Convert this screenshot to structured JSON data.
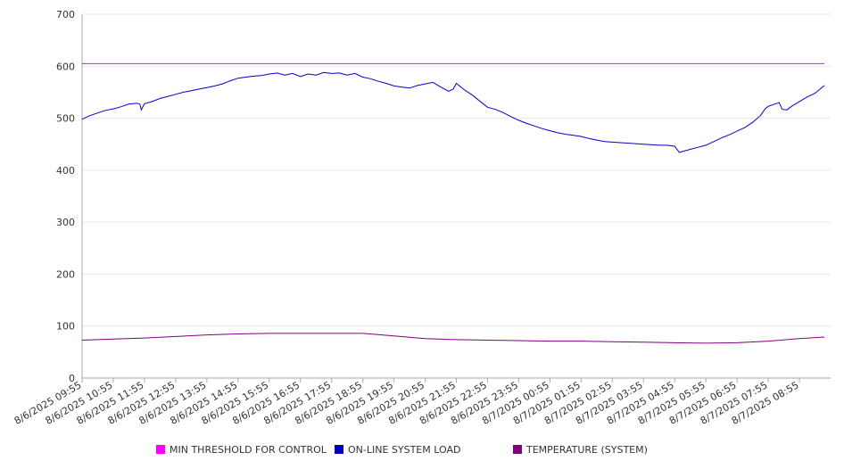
{
  "chart_data": {
    "type": "line",
    "ylim": [
      0,
      700
    ],
    "y_ticks": [
      "0",
      "100",
      "200",
      "300",
      "400",
      "500",
      "600",
      "700"
    ],
    "grid": "horizontal",
    "legend_position": "bottom",
    "x_labels": [
      "8/6/2025 09:55",
      "8/6/2025 10:55",
      "8/6/2025 11:55",
      "8/6/2025 12:55",
      "8/6/2025 13:55",
      "8/6/2025 14:55",
      "8/6/2025 15:55",
      "8/6/2025 16:55",
      "8/6/2025 17:55",
      "8/6/2025 18:55",
      "8/6/2025 19:55",
      "8/6/2025 20:55",
      "8/6/2025 21:55",
      "8/6/2025 22:55",
      "8/6/2025 23:55",
      "8/7/2025 00:55",
      "8/7/2025 01:55",
      "8/7/2025 02:55",
      "8/7/2025 03:55",
      "8/7/2025 04:55",
      "8/7/2025 05:55",
      "8/7/2025 06:55",
      "8/7/2025 07:55",
      "8/7/2025 08:55"
    ],
    "series": [
      {
        "name": "MIN THRESHOLD FOR CONTROL",
        "color": "#ff00ff",
        "points": [
          [
            0,
            605
          ],
          [
            23.8,
            605
          ]
        ]
      },
      {
        "name": "ON-LINE SYSTEM LOAD",
        "color": "#0000cc",
        "points": [
          [
            0,
            498
          ],
          [
            0.25,
            505
          ],
          [
            0.5,
            510
          ],
          [
            0.75,
            515
          ],
          [
            1.0,
            518
          ],
          [
            1.25,
            522
          ],
          [
            1.5,
            527
          ],
          [
            1.75,
            529
          ],
          [
            1.85,
            527
          ],
          [
            1.9,
            516
          ],
          [
            2.0,
            528
          ],
          [
            2.25,
            532
          ],
          [
            2.5,
            538
          ],
          [
            2.75,
            542
          ],
          [
            3.0,
            546
          ],
          [
            3.25,
            550
          ],
          [
            3.5,
            553
          ],
          [
            3.75,
            556
          ],
          [
            4.0,
            559
          ],
          [
            4.25,
            562
          ],
          [
            4.5,
            566
          ],
          [
            4.75,
            572
          ],
          [
            5.0,
            577
          ],
          [
            5.25,
            579
          ],
          [
            5.5,
            581
          ],
          [
            5.75,
            582
          ],
          [
            6.0,
            585
          ],
          [
            6.25,
            587
          ],
          [
            6.5,
            583
          ],
          [
            6.75,
            586
          ],
          [
            7.0,
            580
          ],
          [
            7.25,
            585
          ],
          [
            7.5,
            583
          ],
          [
            7.75,
            588
          ],
          [
            8.0,
            586
          ],
          [
            8.25,
            587
          ],
          [
            8.5,
            583
          ],
          [
            8.75,
            586
          ],
          [
            9.0,
            579
          ],
          [
            9.25,
            576
          ],
          [
            9.5,
            571
          ],
          [
            9.75,
            567
          ],
          [
            10.0,
            562
          ],
          [
            10.25,
            560
          ],
          [
            10.5,
            558
          ],
          [
            10.75,
            563
          ],
          [
            11.0,
            566
          ],
          [
            11.25,
            569
          ],
          [
            11.5,
            560
          ],
          [
            11.75,
            552
          ],
          [
            11.9,
            556
          ],
          [
            12.0,
            567
          ],
          [
            12.25,
            555
          ],
          [
            12.5,
            545
          ],
          [
            12.75,
            533
          ],
          [
            13.0,
            521
          ],
          [
            13.25,
            517
          ],
          [
            13.5,
            511
          ],
          [
            13.75,
            503
          ],
          [
            14.0,
            496
          ],
          [
            14.25,
            490
          ],
          [
            14.5,
            485
          ],
          [
            14.75,
            480
          ],
          [
            15.0,
            476
          ],
          [
            15.25,
            472
          ],
          [
            15.5,
            469
          ],
          [
            15.75,
            467
          ],
          [
            16.0,
            465
          ],
          [
            16.25,
            461
          ],
          [
            16.5,
            458
          ],
          [
            16.75,
            455
          ],
          [
            17.0,
            454
          ],
          [
            17.25,
            453
          ],
          [
            17.5,
            452
          ],
          [
            17.75,
            451
          ],
          [
            18.0,
            450
          ],
          [
            18.25,
            449
          ],
          [
            18.5,
            448
          ],
          [
            18.75,
            448
          ],
          [
            19.0,
            446
          ],
          [
            19.15,
            434
          ],
          [
            19.25,
            436
          ],
          [
            19.5,
            440
          ],
          [
            19.75,
            444
          ],
          [
            20.0,
            448
          ],
          [
            20.25,
            455
          ],
          [
            20.5,
            462
          ],
          [
            20.75,
            468
          ],
          [
            21.0,
            475
          ],
          [
            21.25,
            482
          ],
          [
            21.5,
            492
          ],
          [
            21.75,
            505
          ],
          [
            21.9,
            518
          ],
          [
            22.0,
            523
          ],
          [
            22.25,
            528
          ],
          [
            22.35,
            530
          ],
          [
            22.45,
            517
          ],
          [
            22.6,
            516
          ],
          [
            22.75,
            523
          ],
          [
            23.0,
            532
          ],
          [
            23.25,
            541
          ],
          [
            23.5,
            548
          ],
          [
            23.8,
            563
          ]
        ]
      },
      {
        "name": "TEMPERATURE (SYSTEM)",
        "color": "#800080",
        "points": [
          [
            0,
            73
          ],
          [
            1.0,
            75
          ],
          [
            2.0,
            77
          ],
          [
            3.0,
            80
          ],
          [
            4.0,
            83
          ],
          [
            5.0,
            85
          ],
          [
            6.0,
            86
          ],
          [
            7.0,
            86
          ],
          [
            8.0,
            86
          ],
          [
            9.0,
            86
          ],
          [
            10.0,
            81
          ],
          [
            11.0,
            76
          ],
          [
            12.0,
            74
          ],
          [
            13.0,
            73
          ],
          [
            14.0,
            72
          ],
          [
            15.0,
            71
          ],
          [
            16.0,
            71
          ],
          [
            17.0,
            70
          ],
          [
            18.0,
            69
          ],
          [
            19.0,
            68
          ],
          [
            20.0,
            67
          ],
          [
            21.0,
            68
          ],
          [
            22.0,
            71
          ],
          [
            23.0,
            76
          ],
          [
            23.8,
            79
          ]
        ]
      }
    ]
  }
}
